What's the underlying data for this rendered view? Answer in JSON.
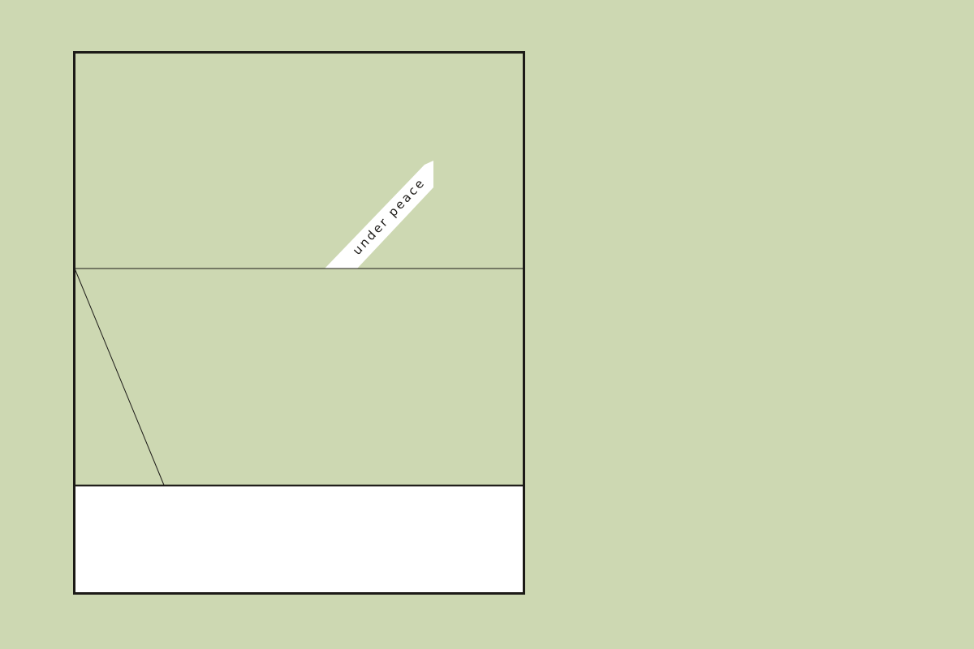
{
  "colors": {
    "background": "#cdd8b2",
    "frame_stroke": "#1c1a17",
    "bottom_panel": "#ffffff",
    "tag_fill": "#ffffff"
  },
  "tag": {
    "text": "under peace"
  }
}
